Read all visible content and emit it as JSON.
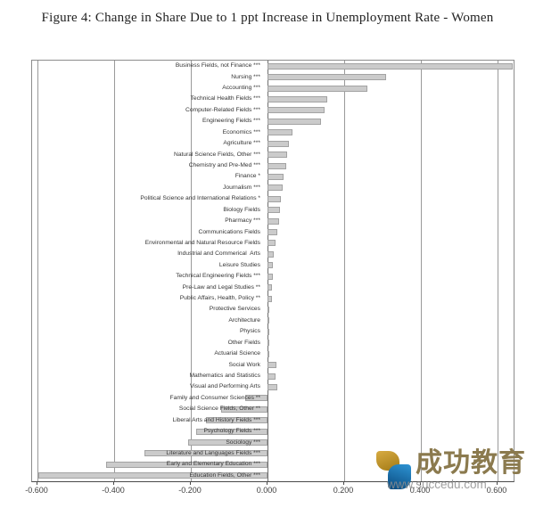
{
  "title": "Figure 4: Change in Share Due to 1 ppt Increase in Unemployment Rate - Women",
  "watermark": {
    "brand": "成功教育",
    "url": "www.succedu.com"
  },
  "colors": {
    "title_text": "#222222",
    "label_text": "#333333",
    "axis_text": "#3f3f3f",
    "bar_fill": "#cbcbcb",
    "bar_border": "#a3a3a3",
    "gridline": "#9a9a9a",
    "zero_line": "#6e6e6e",
    "plot_border": "#8c8c8c",
    "watermark_brand": "#8b7a4e",
    "watermark_url": "#8f8f8f",
    "logo_gold_1": "#d7ab42",
    "logo_gold_2": "#a37a15",
    "logo_blue_1": "#2e94d4",
    "logo_blue_2": "#0a4a7e"
  },
  "chart_data": {
    "type": "bar",
    "orientation": "horizontal",
    "title": "Figure 4: Change in Share Due to 1 ppt Increase in Unemployment Rate - Women",
    "xlabel": "",
    "ylabel": "",
    "xlim": [
      -0.62,
      0.65
    ],
    "grid": true,
    "x_tick_labels": [
      "-0.600",
      "-0.400",
      "-0.200",
      "0.000",
      "0.200",
      "0.400",
      "0.600"
    ],
    "x_tick_values": [
      -0.6,
      -0.4,
      -0.2,
      0.0,
      0.2,
      0.4,
      0.6
    ],
    "categories": [
      "Business Fields, not Finance ***",
      "Nursing ***",
      "Accounting ***",
      "Technical Health Fields ***",
      "Computer-Related Fields ***",
      "Engineering Fields ***",
      "Economics ***",
      "Agriculture ***",
      "Natural Science Fields, Other ***",
      "Chemistry and Pre-Med ***",
      "Finance *",
      "Journalism ***",
      "Political Science and International Relations *",
      "Biology Fields",
      "Pharmacy ***",
      "Communications Fields",
      "Environmental and Natural Resource Fields",
      "Industrial and Commerical  Arts",
      "Leisure Studies",
      "Technical Engineering Fields ***",
      "Pre-Law and Legal Studies **",
      "Public Affairs, Health, Policy **",
      "Protective Services",
      "Architecture",
      "Physics",
      "Other Fields",
      "Actuarial Science",
      "Social Work",
      "Mathematics and Statistics",
      "Visual and Performing Arts",
      "Family and Consumer Sciences **",
      "Social Science Fields, Other **",
      "Liberal Arts and History Fields ***",
      "Psychology Fields ***",
      "Sociology ***",
      "Literature and Languages Fields ***",
      "Early and Elementary Education ***",
      "Education Fields, Other ***"
    ],
    "values": [
      0.64,
      0.31,
      0.26,
      0.155,
      0.148,
      0.139,
      0.065,
      0.056,
      0.051,
      0.049,
      0.042,
      0.04,
      0.036,
      0.032,
      0.03,
      0.026,
      0.02,
      0.017,
      0.014,
      0.014,
      0.011,
      0.011,
      0.005,
      0.004,
      0.004,
      0.003,
      0.002,
      0.024,
      0.021,
      0.026,
      -0.057,
      -0.122,
      -0.16,
      -0.185,
      -0.207,
      -0.32,
      -0.42,
      -0.597
    ]
  }
}
